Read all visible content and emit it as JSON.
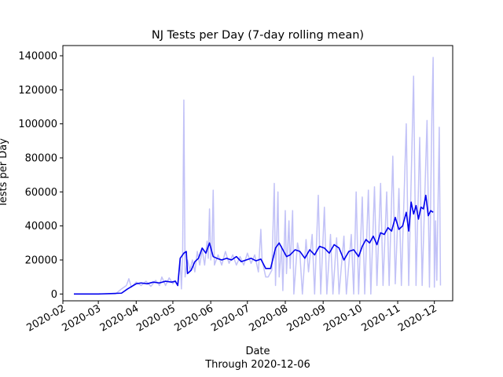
{
  "chart_data": {
    "type": "line",
    "title": "NJ Tests per Day (7-day rolling mean)",
    "xlabel": "Date",
    "xlabel_sub": "Through 2020-12-06",
    "ylabel": "Tests per Day",
    "xlim": [
      "2020-02-01",
      "2020-12-16"
    ],
    "ylim": [
      -4000,
      146000
    ],
    "yticks": [
      0,
      20000,
      40000,
      60000,
      80000,
      100000,
      120000,
      140000
    ],
    "xticks": [
      "2020-02",
      "2020-03",
      "2020-04",
      "2020-05",
      "2020-06",
      "2020-07",
      "2020-08",
      "2020-09",
      "2020-10",
      "2020-11",
      "2020-12"
    ],
    "grid": false,
    "series": [
      {
        "role": "daily",
        "color": "#c2c2f7",
        "points": [
          [
            "2020-02-10",
            0
          ],
          [
            "2020-03-01",
            0
          ],
          [
            "2020-03-15",
            0
          ],
          [
            "2020-03-20",
            3000
          ],
          [
            "2020-03-24",
            5000
          ],
          [
            "2020-03-26",
            9000
          ],
          [
            "2020-03-28",
            4000
          ],
          [
            "2020-04-01",
            7000
          ],
          [
            "2020-04-05",
            5000
          ],
          [
            "2020-04-09",
            7500
          ],
          [
            "2020-04-13",
            4500
          ],
          [
            "2020-04-17",
            8000
          ],
          [
            "2020-04-20",
            5000
          ],
          [
            "2020-04-22",
            10000
          ],
          [
            "2020-04-25",
            5000
          ],
          [
            "2020-04-28",
            9500
          ],
          [
            "2020-05-01",
            6000
          ],
          [
            "2020-05-03",
            8000
          ],
          [
            "2020-05-05",
            5000
          ],
          [
            "2020-05-07",
            20000
          ],
          [
            "2020-05-08",
            3000
          ],
          [
            "2020-05-09",
            23000
          ],
          [
            "2020-05-10",
            114000
          ],
          [
            "2020-05-11",
            10000
          ],
          [
            "2020-05-13",
            20000
          ],
          [
            "2020-05-15",
            14000
          ],
          [
            "2020-05-17",
            20000
          ],
          [
            "2020-05-19",
            13000
          ],
          [
            "2020-05-21",
            25000
          ],
          [
            "2020-05-23",
            17000
          ],
          [
            "2020-05-25",
            26000
          ],
          [
            "2020-05-27",
            17000
          ],
          [
            "2020-05-29",
            31000
          ],
          [
            "2020-05-30",
            21000
          ],
          [
            "2020-05-31",
            50000
          ],
          [
            "2020-06-01",
            20000
          ],
          [
            "2020-06-02",
            27000
          ],
          [
            "2020-06-03",
            61000
          ],
          [
            "2020-06-04",
            17000
          ],
          [
            "2020-06-07",
            23000
          ],
          [
            "2020-06-10",
            17000
          ],
          [
            "2020-06-13",
            25000
          ],
          [
            "2020-06-16",
            18000
          ],
          [
            "2020-06-19",
            23000
          ],
          [
            "2020-06-22",
            17000
          ],
          [
            "2020-06-25",
            22000
          ],
          [
            "2020-06-28",
            17000
          ],
          [
            "2020-07-01",
            24000
          ],
          [
            "2020-07-04",
            18000
          ],
          [
            "2020-07-07",
            23000
          ],
          [
            "2020-07-10",
            13000
          ],
          [
            "2020-07-12",
            38000
          ],
          [
            "2020-07-13",
            20000
          ],
          [
            "2020-07-16",
            10000
          ],
          [
            "2020-07-18",
            10000
          ],
          [
            "2020-07-21",
            14000
          ],
          [
            "2020-07-23",
            65000
          ],
          [
            "2020-07-24",
            5000
          ],
          [
            "2020-07-26",
            60000
          ],
          [
            "2020-07-27",
            10000
          ],
          [
            "2020-07-29",
            28000
          ],
          [
            "2020-07-30",
            2000
          ],
          [
            "2020-08-01",
            49000
          ],
          [
            "2020-08-02",
            12000
          ],
          [
            "2020-08-04",
            43000
          ],
          [
            "2020-08-05",
            15000
          ],
          [
            "2020-08-07",
            49000
          ],
          [
            "2020-08-08",
            0
          ],
          [
            "2020-08-11",
            30000
          ],
          [
            "2020-08-13",
            23000
          ],
          [
            "2020-08-15",
            0
          ],
          [
            "2020-08-18",
            32000
          ],
          [
            "2020-08-20",
            13000
          ],
          [
            "2020-08-23",
            35000
          ],
          [
            "2020-08-25",
            0
          ],
          [
            "2020-08-28",
            58000
          ],
          [
            "2020-08-30",
            0
          ],
          [
            "2020-09-02",
            51000
          ],
          [
            "2020-09-04",
            0
          ],
          [
            "2020-09-07",
            35000
          ],
          [
            "2020-09-09",
            0
          ],
          [
            "2020-09-12",
            33000
          ],
          [
            "2020-09-14",
            0
          ],
          [
            "2020-09-18",
            34000
          ],
          [
            "2020-09-20",
            0
          ],
          [
            "2020-09-24",
            35000
          ],
          [
            "2020-09-26",
            0
          ],
          [
            "2020-09-28",
            60000
          ],
          [
            "2020-09-30",
            0
          ],
          [
            "2020-10-03",
            57000
          ],
          [
            "2020-10-05",
            0
          ],
          [
            "2020-10-08",
            61000
          ],
          [
            "2020-10-10",
            0
          ],
          [
            "2020-10-13",
            63000
          ],
          [
            "2020-10-15",
            5000
          ],
          [
            "2020-10-18",
            65000
          ],
          [
            "2020-10-20",
            5000
          ],
          [
            "2020-10-23",
            60000
          ],
          [
            "2020-10-25",
            5000
          ],
          [
            "2020-10-28",
            81000
          ],
          [
            "2020-10-30",
            6000
          ],
          [
            "2020-11-02",
            62000
          ],
          [
            "2020-11-04",
            5000
          ],
          [
            "2020-11-08",
            100000
          ],
          [
            "2020-11-10",
            5000
          ],
          [
            "2020-11-14",
            128000
          ],
          [
            "2020-11-16",
            5000
          ],
          [
            "2020-11-19",
            92000
          ],
          [
            "2020-11-21",
            5000
          ],
          [
            "2020-11-25",
            102000
          ],
          [
            "2020-11-27",
            4000
          ],
          [
            "2020-11-29",
            107000
          ],
          [
            "2020-11-30",
            139000
          ],
          [
            "2020-12-01",
            4000
          ],
          [
            "2020-12-02",
            43000
          ],
          [
            "2020-12-03",
            8000
          ],
          [
            "2020-12-05",
            98000
          ],
          [
            "2020-12-06",
            5000
          ]
        ]
      },
      {
        "role": "rolling_mean",
        "color": "#0000ee",
        "points": [
          [
            "2020-02-10",
            0
          ],
          [
            "2020-03-01",
            0
          ],
          [
            "2020-03-20",
            500
          ],
          [
            "2020-03-25",
            3000
          ],
          [
            "2020-04-01",
            6000
          ],
          [
            "2020-04-05",
            6500
          ],
          [
            "2020-04-10",
            6000
          ],
          [
            "2020-04-15",
            7000
          ],
          [
            "2020-04-20",
            6500
          ],
          [
            "2020-04-25",
            7500
          ],
          [
            "2020-04-30",
            7000
          ],
          [
            "2020-05-03",
            7500
          ],
          [
            "2020-05-05",
            5000
          ],
          [
            "2020-05-07",
            21000
          ],
          [
            "2020-05-10",
            24000
          ],
          [
            "2020-05-12",
            25000
          ],
          [
            "2020-05-13",
            12000
          ],
          [
            "2020-05-16",
            14000
          ],
          [
            "2020-05-19",
            19000
          ],
          [
            "2020-05-22",
            21000
          ],
          [
            "2020-05-25",
            27000
          ],
          [
            "2020-05-28",
            24000
          ],
          [
            "2020-05-31",
            30000
          ],
          [
            "2020-06-03",
            22000
          ],
          [
            "2020-06-06",
            21000
          ],
          [
            "2020-06-10",
            20000
          ],
          [
            "2020-06-14",
            21000
          ],
          [
            "2020-06-18",
            20000
          ],
          [
            "2020-06-22",
            22000
          ],
          [
            "2020-06-26",
            19000
          ],
          [
            "2020-06-30",
            20000
          ],
          [
            "2020-07-04",
            21000
          ],
          [
            "2020-07-08",
            19500
          ],
          [
            "2020-07-12",
            20500
          ],
          [
            "2020-07-16",
            15000
          ],
          [
            "2020-07-20",
            15000
          ],
          [
            "2020-07-24",
            27000
          ],
          [
            "2020-07-27",
            30000
          ],
          [
            "2020-07-30",
            26000
          ],
          [
            "2020-08-02",
            22000
          ],
          [
            "2020-08-05",
            23000
          ],
          [
            "2020-08-09",
            26000
          ],
          [
            "2020-08-13",
            25000
          ],
          [
            "2020-08-17",
            21000
          ],
          [
            "2020-08-21",
            26000
          ],
          [
            "2020-08-25",
            23000
          ],
          [
            "2020-08-29",
            28000
          ],
          [
            "2020-09-02",
            27000
          ],
          [
            "2020-09-06",
            24000
          ],
          [
            "2020-09-10",
            29000
          ],
          [
            "2020-09-14",
            27000
          ],
          [
            "2020-09-18",
            20000
          ],
          [
            "2020-09-22",
            25000
          ],
          [
            "2020-09-26",
            26000
          ],
          [
            "2020-09-30",
            22000
          ],
          [
            "2020-10-03",
            28000
          ],
          [
            "2020-10-06",
            32000
          ],
          [
            "2020-10-09",
            30000
          ],
          [
            "2020-10-12",
            34000
          ],
          [
            "2020-10-15",
            29000
          ],
          [
            "2020-10-18",
            36000
          ],
          [
            "2020-10-21",
            35000
          ],
          [
            "2020-10-24",
            39000
          ],
          [
            "2020-10-27",
            37000
          ],
          [
            "2020-10-30",
            45000
          ],
          [
            "2020-11-02",
            38000
          ],
          [
            "2020-11-05",
            40000
          ],
          [
            "2020-11-08",
            48000
          ],
          [
            "2020-11-10",
            37000
          ],
          [
            "2020-11-12",
            54000
          ],
          [
            "2020-11-14",
            47000
          ],
          [
            "2020-11-16",
            52000
          ],
          [
            "2020-11-18",
            44000
          ],
          [
            "2020-11-20",
            51000
          ],
          [
            "2020-11-22",
            50000
          ],
          [
            "2020-11-24",
            58000
          ],
          [
            "2020-11-26",
            46000
          ],
          [
            "2020-11-28",
            49000
          ],
          [
            "2020-11-30",
            48000
          ]
        ]
      }
    ]
  }
}
